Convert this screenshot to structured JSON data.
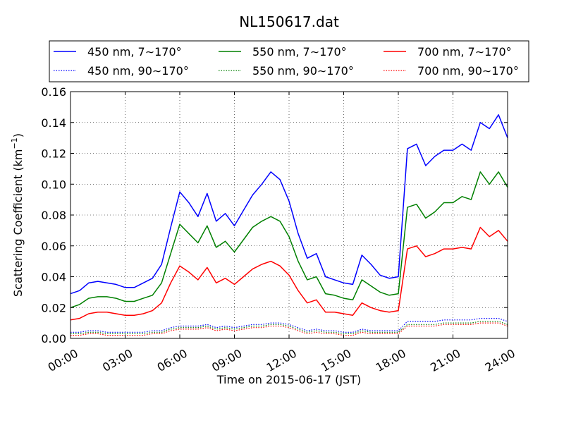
{
  "chart_data": {
    "type": "line",
    "title": "NL150617.dat",
    "xlabel": "Time on 2015-06-17 (JST)",
    "ylabel": "Scattering Coefficient (km",
    "ylabel_sup": "−1",
    "ylabel_end": ")",
    "xlim": [
      0,
      24
    ],
    "ylim": [
      0,
      0.16
    ],
    "xticks": [
      0,
      3,
      6,
      9,
      12,
      15,
      18,
      21,
      24
    ],
    "xtick_labels": [
      "00:00",
      "03:00",
      "06:00",
      "09:00",
      "12:00",
      "15:00",
      "18:00",
      "21:00",
      "24:00"
    ],
    "yticks": [
      0,
      0.02,
      0.04,
      0.06,
      0.08,
      0.1,
      0.12,
      0.14,
      0.16
    ],
    "ytick_labels": [
      "0.00",
      "0.02",
      "0.04",
      "0.06",
      "0.08",
      "0.10",
      "0.12",
      "0.14",
      "0.16"
    ],
    "grid": true,
    "legend_position": "top",
    "x": [
      0,
      0.5,
      1,
      1.5,
      2,
      2.5,
      3,
      3.5,
      4,
      4.5,
      5,
      5.5,
      6,
      6.5,
      7,
      7.5,
      8,
      8.5,
      9,
      9.5,
      10,
      10.5,
      11,
      11.5,
      12,
      12.5,
      13,
      13.5,
      14,
      14.5,
      15,
      15.5,
      16,
      16.5,
      17,
      17.5,
      18,
      18.5,
      19,
      19.5,
      20,
      20.5,
      21,
      21.5,
      22,
      22.5,
      23,
      23.5,
      24
    ],
    "series": [
      {
        "name": "450 nm, 7∼170°",
        "color": "#0000ff",
        "style": "solid",
        "values": [
          0.029,
          0.031,
          0.036,
          0.037,
          0.036,
          0.035,
          0.033,
          0.033,
          0.036,
          0.039,
          0.048,
          0.072,
          0.095,
          0.088,
          0.079,
          0.094,
          0.076,
          0.081,
          0.073,
          0.083,
          0.093,
          0.1,
          0.108,
          0.103,
          0.089,
          0.068,
          0.052,
          0.055,
          0.04,
          0.038,
          0.036,
          0.035,
          0.054,
          0.048,
          0.041,
          0.039,
          0.04,
          0.123,
          0.126,
          0.112,
          0.118,
          0.122,
          0.122,
          0.126,
          0.122,
          0.14,
          0.136,
          0.145,
          0.13
        ]
      },
      {
        "name": "550 nm, 7∼170°",
        "color": "#008000",
        "style": "solid",
        "values": [
          0.02,
          0.022,
          0.026,
          0.027,
          0.027,
          0.026,
          0.024,
          0.024,
          0.026,
          0.028,
          0.036,
          0.055,
          0.074,
          0.068,
          0.062,
          0.073,
          0.059,
          0.063,
          0.056,
          0.064,
          0.072,
          0.076,
          0.079,
          0.076,
          0.066,
          0.05,
          0.038,
          0.04,
          0.029,
          0.028,
          0.026,
          0.025,
          0.038,
          0.034,
          0.03,
          0.028,
          0.029,
          0.085,
          0.087,
          0.078,
          0.082,
          0.088,
          0.088,
          0.092,
          0.09,
          0.108,
          0.1,
          0.108,
          0.098
        ]
      },
      {
        "name": "700 nm, 7∼170°",
        "color": "#ff0000",
        "style": "solid",
        "values": [
          0.012,
          0.013,
          0.016,
          0.017,
          0.017,
          0.016,
          0.015,
          0.015,
          0.016,
          0.018,
          0.023,
          0.036,
          0.047,
          0.043,
          0.038,
          0.046,
          0.036,
          0.039,
          0.035,
          0.04,
          0.045,
          0.048,
          0.05,
          0.047,
          0.041,
          0.031,
          0.023,
          0.025,
          0.017,
          0.017,
          0.016,
          0.015,
          0.023,
          0.02,
          0.018,
          0.017,
          0.018,
          0.058,
          0.06,
          0.053,
          0.055,
          0.058,
          0.058,
          0.059,
          0.058,
          0.072,
          0.066,
          0.07,
          0.063
        ]
      },
      {
        "name": "450 nm, 90∼170°",
        "color": "#0000ff",
        "style": "dotted",
        "values": [
          0.004,
          0.004,
          0.005,
          0.005,
          0.004,
          0.004,
          0.004,
          0.004,
          0.004,
          0.005,
          0.005,
          0.007,
          0.008,
          0.008,
          0.008,
          0.009,
          0.007,
          0.008,
          0.007,
          0.008,
          0.009,
          0.009,
          0.01,
          0.01,
          0.009,
          0.007,
          0.005,
          0.006,
          0.005,
          0.005,
          0.004,
          0.004,
          0.006,
          0.005,
          0.005,
          0.005,
          0.005,
          0.011,
          0.011,
          0.011,
          0.011,
          0.012,
          0.012,
          0.012,
          0.012,
          0.013,
          0.013,
          0.013,
          0.011
        ]
      },
      {
        "name": "550 nm, 90∼170°",
        "color": "#008000",
        "style": "dotted",
        "values": [
          0.003,
          0.003,
          0.004,
          0.004,
          0.003,
          0.003,
          0.003,
          0.003,
          0.003,
          0.004,
          0.004,
          0.006,
          0.007,
          0.007,
          0.007,
          0.008,
          0.006,
          0.007,
          0.006,
          0.007,
          0.008,
          0.008,
          0.009,
          0.009,
          0.008,
          0.006,
          0.004,
          0.005,
          0.004,
          0.004,
          0.003,
          0.003,
          0.005,
          0.004,
          0.004,
          0.004,
          0.004,
          0.009,
          0.009,
          0.009,
          0.009,
          0.01,
          0.01,
          0.01,
          0.01,
          0.011,
          0.011,
          0.011,
          0.009
        ]
      },
      {
        "name": "700 nm, 90∼170°",
        "color": "#ff0000",
        "style": "dotted",
        "values": [
          0.002,
          0.002,
          0.003,
          0.003,
          0.002,
          0.002,
          0.002,
          0.002,
          0.002,
          0.003,
          0.003,
          0.005,
          0.006,
          0.006,
          0.006,
          0.007,
          0.005,
          0.006,
          0.005,
          0.006,
          0.007,
          0.007,
          0.008,
          0.008,
          0.007,
          0.005,
          0.003,
          0.004,
          0.003,
          0.003,
          0.002,
          0.002,
          0.004,
          0.003,
          0.003,
          0.003,
          0.003,
          0.008,
          0.008,
          0.008,
          0.008,
          0.009,
          0.009,
          0.009,
          0.009,
          0.01,
          0.01,
          0.01,
          0.008
        ]
      }
    ]
  }
}
